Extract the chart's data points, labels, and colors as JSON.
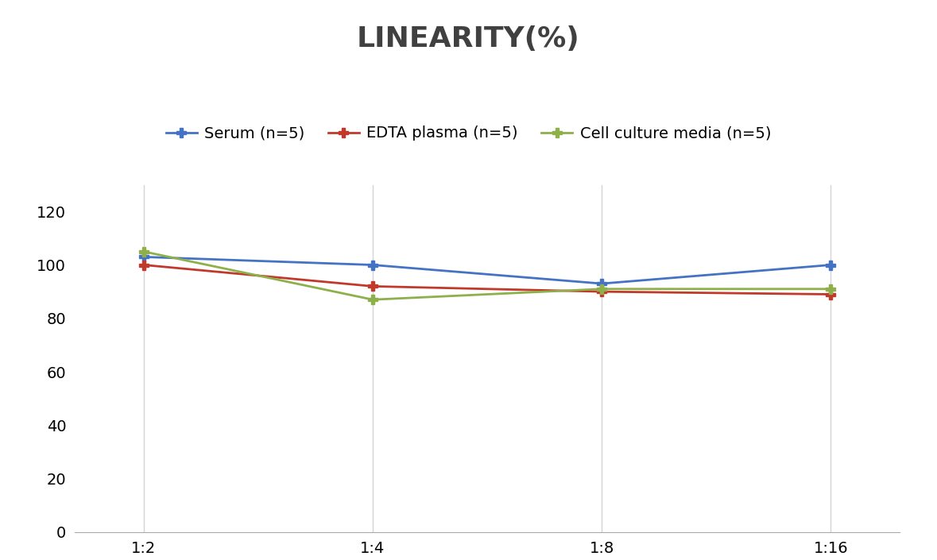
{
  "title": "LINEARITY(%)",
  "x_labels": [
    "1:2",
    "1:4",
    "1:8",
    "1:16"
  ],
  "x_positions": [
    0,
    1,
    2,
    3
  ],
  "series": [
    {
      "label": "Serum (n=5)",
      "values": [
        103,
        100,
        93,
        100
      ],
      "color": "#4472C4",
      "marker": "P",
      "markersize": 9,
      "linewidth": 2
    },
    {
      "label": "EDTA plasma (n=5)",
      "values": [
        100,
        92,
        90,
        89
      ],
      "color": "#C0392B",
      "marker": "P",
      "markersize": 9,
      "linewidth": 2
    },
    {
      "label": "Cell culture media (n=5)",
      "values": [
        105,
        87,
        91,
        91
      ],
      "color": "#8DB04A",
      "marker": "P",
      "markersize": 9,
      "linewidth": 2
    }
  ],
  "ylim": [
    0,
    130
  ],
  "yticks": [
    0,
    20,
    40,
    60,
    80,
    100,
    120
  ],
  "title_fontsize": 26,
  "tick_fontsize": 14,
  "legend_fontsize": 14,
  "background_color": "#ffffff",
  "grid_color": "#d4d4d4",
  "title_color": "#404040"
}
